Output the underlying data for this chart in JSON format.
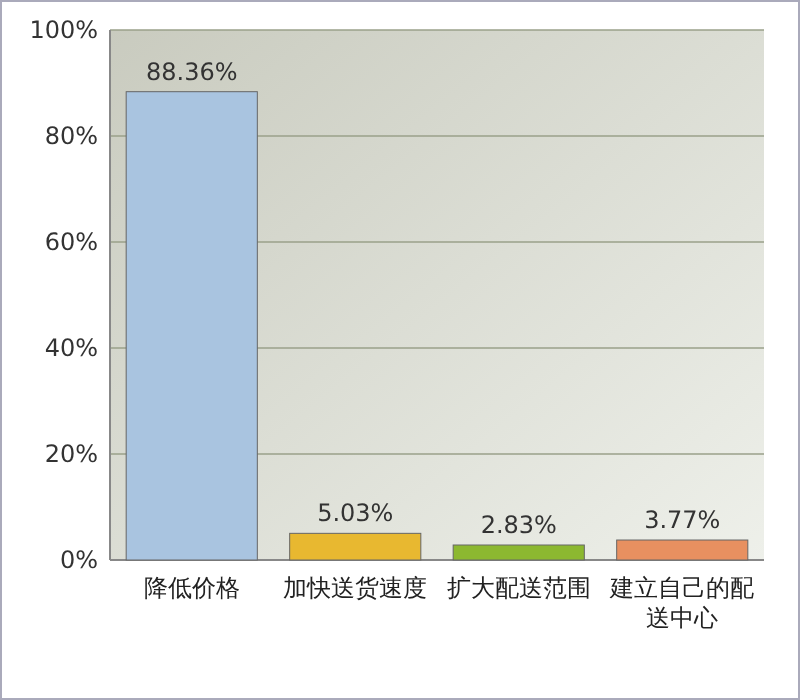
{
  "chart_data": {
    "type": "bar",
    "categories": [
      "降低价格",
      "加快送货速度",
      "扩大配送范围",
      "建立自己的配送中心"
    ],
    "values": [
      88.36,
      5.03,
      2.83,
      3.77
    ],
    "colors": [
      "#a9c4e0",
      "#e8b830",
      "#8cb830",
      "#e89060"
    ],
    "value_labels": [
      "88.36%",
      "5.03%",
      "2.83%",
      "3.77%"
    ],
    "ylim": [
      0,
      100
    ],
    "yticks": [
      {
        "value": 0,
        "label": "0%"
      },
      {
        "value": 20,
        "label": "20%"
      },
      {
        "value": 40,
        "label": "40%"
      },
      {
        "value": 60,
        "label": "60%"
      },
      {
        "value": 80,
        "label": "80%"
      },
      {
        "value": 100,
        "label": "100%"
      }
    ],
    "grid": "y"
  }
}
